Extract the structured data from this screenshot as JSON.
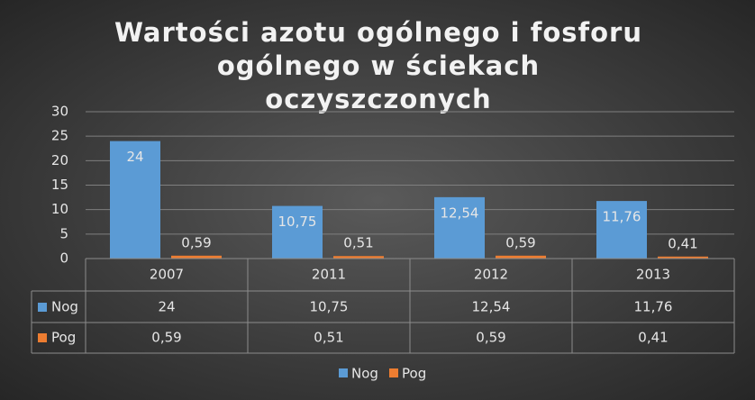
{
  "chart_data": {
    "type": "bar",
    "title": "Wartości azotu ogólnego i fosforu ogólnego w ściekach oczyszczonych",
    "categories": [
      "2007",
      "2011",
      "2012",
      "2013"
    ],
    "series": [
      {
        "name": "Nog",
        "color": "#5b9bd5",
        "values": [
          24,
          10.75,
          12.54,
          11.76
        ],
        "value_labels": [
          "24",
          "10,75",
          "12,54",
          "11,76"
        ]
      },
      {
        "name": "Pog",
        "color": "#ed7d31",
        "values": [
          0.59,
          0.51,
          0.59,
          0.41
        ],
        "value_labels": [
          "0,59",
          "0,51",
          "0,59",
          "0,41"
        ]
      }
    ],
    "ylim": [
      0,
      30
    ],
    "yticks": [
      0,
      5,
      10,
      15,
      20,
      25,
      30
    ],
    "grid": true,
    "legend": "bottom",
    "data_table": true
  }
}
